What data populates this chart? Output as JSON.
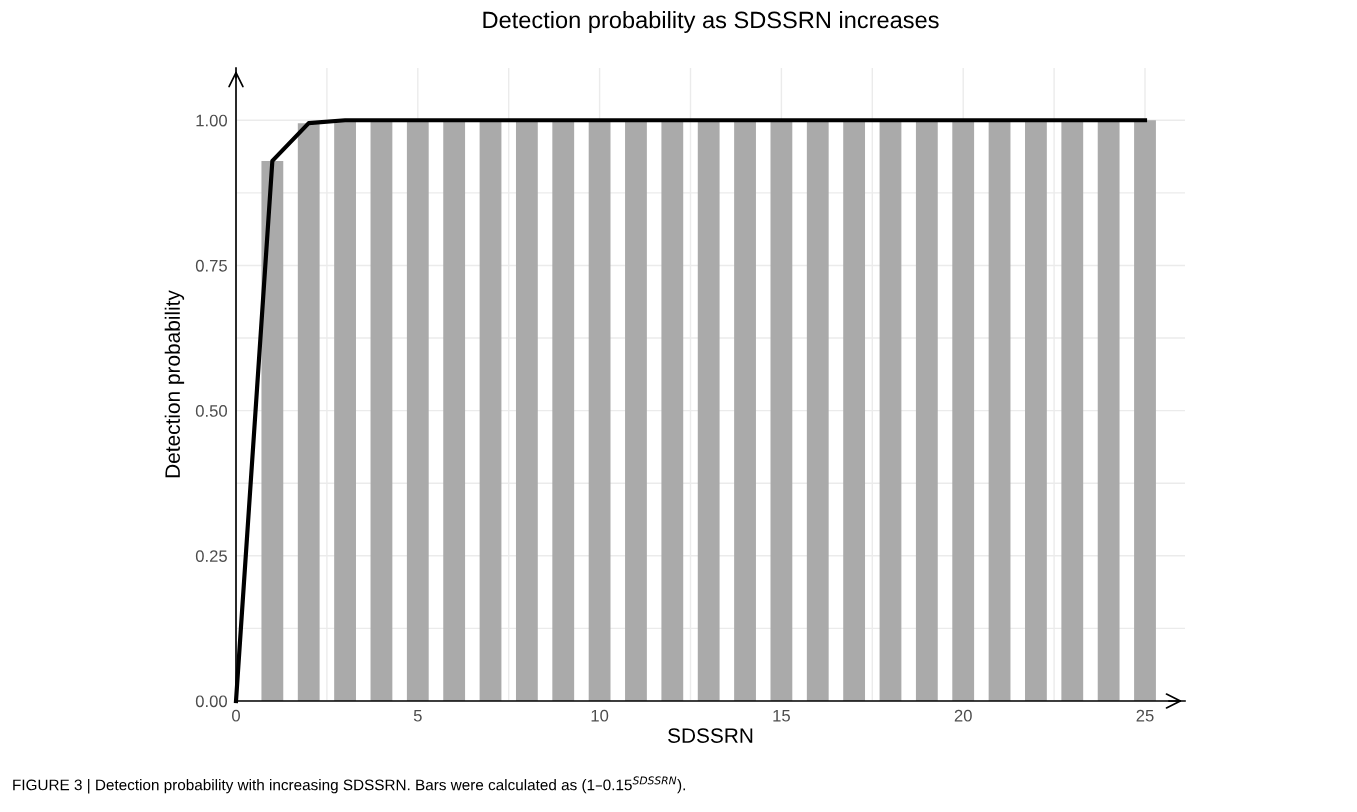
{
  "chart_data": {
    "type": "bar",
    "title": "Detection probability as SDSSRN increases",
    "xlabel": "SDSSRN",
    "ylabel": "Detection probability",
    "x": [
      1,
      2,
      3,
      4,
      5,
      6,
      7,
      8,
      9,
      10,
      11,
      12,
      13,
      14,
      15,
      16,
      17,
      18,
      19,
      20,
      21,
      22,
      23,
      24,
      25
    ],
    "series": [
      {
        "color": "#aaaaaa",
        "values": [
          0.93,
          0.995,
          1,
          1,
          1,
          1,
          1,
          1,
          1,
          1,
          1,
          1,
          1,
          1,
          1,
          1,
          1,
          1,
          1,
          1,
          1,
          1,
          1,
          1,
          1
        ]
      },
      {
        "type": "line",
        "color": "#000000",
        "x": [
          0,
          1,
          2,
          3,
          4,
          5,
          6,
          7,
          8,
          9,
          10,
          11,
          12,
          13,
          14,
          15,
          16,
          17,
          18,
          19,
          20,
          21,
          22,
          23,
          24,
          25
        ],
        "values": [
          0,
          0.93,
          0.995,
          1,
          1,
          1,
          1,
          1,
          1,
          1,
          1,
          1,
          1,
          1,
          1,
          1,
          1,
          1,
          1,
          1,
          1,
          1,
          1,
          1,
          1,
          1
        ]
      }
    ],
    "xlim": [
      0,
      26.1
    ],
    "ylim": [
      0,
      1.09
    ],
    "xticks": [
      0,
      {
        "value": 2.5,
        "label": null
      },
      5,
      {
        "value": 7.5,
        "label": null
      },
      10,
      {
        "value": 12.5,
        "label": null
      },
      15,
      {
        "value": 17.5,
        "label": null
      },
      20,
      {
        "value": 22.5,
        "label": null
      },
      25
    ],
    "yticks": [
      {
        "value": 0,
        "label": "0.00"
      },
      {
        "value": 0.125,
        "label": null
      },
      {
        "value": 0.25,
        "label": "0.25"
      },
      {
        "value": 0.375,
        "label": null
      },
      {
        "value": 0.5,
        "label": "0.50"
      },
      {
        "value": 0.625,
        "label": null
      },
      {
        "value": 0.75,
        "label": "0.75"
      },
      {
        "value": 0.875,
        "label": null
      },
      {
        "value": 1,
        "label": "1.00"
      }
    ],
    "grid": true,
    "legend": false,
    "marker": "none",
    "line_style": "solid",
    "annotations": [
      "FIGURE 3 | Detection probability with increasing SDSSRN. Bars were calculated as (1–0.15$^{SDSSRN}$)."
    ]
  }
}
